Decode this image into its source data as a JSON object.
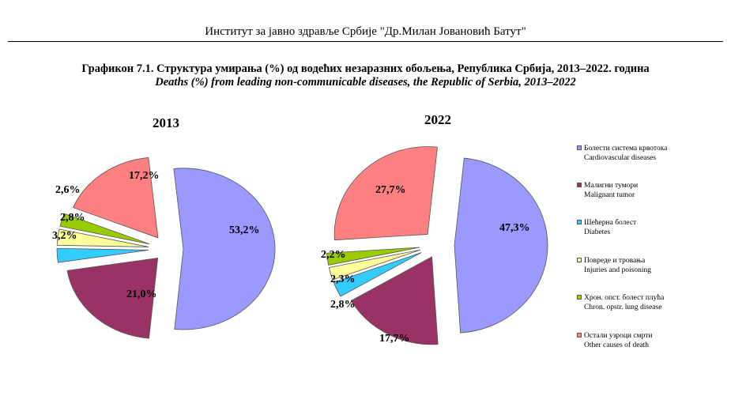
{
  "header": {
    "institute": "Институт за јавно здравље Србије \"Др.Милан Јовановић Батут\""
  },
  "titles": {
    "line1": "Графикон 7.1. Структура умирања (%) од водећих незаразних обољења, Република Србија,  2013–2022. година",
    "line2": "Deaths (%) from leading non-communicable diseases, the Republic of Serbia, 2013–2022"
  },
  "chart_data": [
    {
      "type": "pie",
      "title": "2013",
      "categories": [
        "Болести система крвотока / Cardiovascular diseases",
        "Малигни тумори / Malignant tumor",
        "Шећерна болест / Diabetes",
        "Повреде и тровања / Injuries and poisoning",
        "Хрон. опст. болест плућа / Chron. opstr. lung disease",
        "Остали узроци смрти / Other causes of death"
      ],
      "values": [
        53.2,
        21.0,
        2.8,
        3.2,
        2.6,
        17.2
      ],
      "labels": [
        "53,2%",
        "21,0%",
        "2,8%",
        "3,2%",
        "2,6%",
        "17,2%"
      ]
    },
    {
      "type": "pie",
      "title": "2022",
      "categories": [
        "Болести система крвотока / Cardiovascular diseases",
        "Малигни тумори / Malignant tumor",
        "Шећерна болест / Diabetes",
        "Повреде и тровања / Injuries and poisoning",
        "Хрон. опст. болест плућа / Chron. opstr. lung disease",
        "Остали узроци смрти / Other causes of death"
      ],
      "values": [
        47.3,
        17.7,
        2.8,
        2.3,
        2.2,
        27.7
      ],
      "labels": [
        "47,3%",
        "17,7%",
        "2,8%",
        "2,3%",
        "2,2%",
        "27,7%"
      ]
    }
  ],
  "legend": [
    {
      "sr": "Болести система крвотока",
      "en": "Cardiovascular diseases",
      "color": "#9999ff"
    },
    {
      "sr": "Малигни тумори",
      "en": "Malignant tumor",
      "color": "#993366"
    },
    {
      "sr": "Шећерна болест",
      "en": "Diabetes",
      "color": "#33ccff"
    },
    {
      "sr": "Повреде и тровања",
      "en": "Injuries and poisoning",
      "color": "#ffff99"
    },
    {
      "sr": "Хрон. опст. болест плућа",
      "en": "Chron. opstr. lung disease",
      "color": "#99cc00"
    },
    {
      "sr": "Остали узроци смрти",
      "en": "Other causes of death",
      "color": "#ff8080"
    }
  ]
}
